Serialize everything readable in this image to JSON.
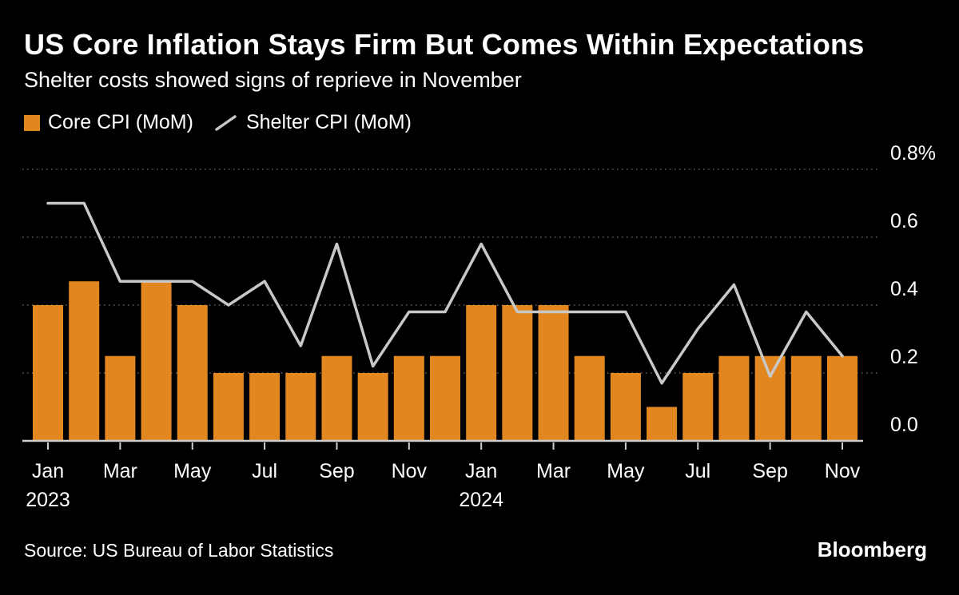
{
  "header": {
    "title": "US Core Inflation Stays Firm But Comes Within Expectations",
    "subtitle": "Shelter costs showed signs of reprieve in November"
  },
  "legend": {
    "core": "Core CPI (MoM)",
    "shelter": "Shelter CPI (MoM)"
  },
  "footer": {
    "source": "Source: US Bureau of Labor Statistics",
    "brand": "Bloomberg"
  },
  "colors": {
    "background": "#000000",
    "text": "#FFFFFF",
    "bar": "#E2861F",
    "line": "#C8C8C8",
    "grid": "#646464",
    "axis": "#CFCFCF"
  },
  "chart_data": {
    "type": "bar",
    "title": "US Core Inflation Stays Firm But Comes Within Expectations",
    "subtitle": "Shelter costs showed signs of reprieve in November",
    "xlabel": "",
    "ylabel": "",
    "ylim": [
      0,
      0.8
    ],
    "grid": "horizontal-dotted",
    "legend_position": "top-left",
    "categories": [
      "Jan 2023",
      "Feb 2023",
      "Mar 2023",
      "Apr 2023",
      "May 2023",
      "Jun 2023",
      "Jul 2023",
      "Aug 2023",
      "Sep 2023",
      "Oct 2023",
      "Nov 2023",
      "Dec 2023",
      "Jan 2024",
      "Feb 2024",
      "Mar 2024",
      "Apr 2024",
      "May 2024",
      "Jun 2024",
      "Jul 2024",
      "Aug 2024",
      "Sep 2024",
      "Oct 2024",
      "Nov 2024"
    ],
    "series": [
      {
        "name": "Core CPI (MoM)",
        "type": "bar",
        "unit": "%",
        "values": [
          0.4,
          0.47,
          0.25,
          0.47,
          0.4,
          0.2,
          0.2,
          0.2,
          0.25,
          0.2,
          0.25,
          0.25,
          0.4,
          0.4,
          0.4,
          0.25,
          0.2,
          0.1,
          0.2,
          0.25,
          0.25,
          0.25,
          0.25
        ]
      },
      {
        "name": "Shelter CPI (MoM)",
        "type": "line",
        "unit": "%",
        "values": [
          0.7,
          0.7,
          0.47,
          0.47,
          0.47,
          0.4,
          0.47,
          0.28,
          0.58,
          0.22,
          0.38,
          0.38,
          0.58,
          0.38,
          0.38,
          0.38,
          0.38,
          0.17,
          0.33,
          0.46,
          0.19,
          0.38,
          0.25
        ]
      }
    ],
    "yticks": [
      {
        "value": 0.0,
        "label": "0.0"
      },
      {
        "value": 0.2,
        "label": "0.2"
      },
      {
        "value": 0.4,
        "label": "0.4"
      },
      {
        "value": 0.6,
        "label": "0.6"
      },
      {
        "value": 0.8,
        "label": "0.8%"
      }
    ],
    "xticks": [
      {
        "index": 0,
        "label": "Jan",
        "year": "2023"
      },
      {
        "index": 2,
        "label": "Mar"
      },
      {
        "index": 4,
        "label": "May"
      },
      {
        "index": 6,
        "label": "Jul"
      },
      {
        "index": 8,
        "label": "Sep"
      },
      {
        "index": 10,
        "label": "Nov"
      },
      {
        "index": 12,
        "label": "Jan",
        "year": "2024"
      },
      {
        "index": 14,
        "label": "Mar"
      },
      {
        "index": 16,
        "label": "May"
      },
      {
        "index": 18,
        "label": "Jul"
      },
      {
        "index": 20,
        "label": "Sep"
      },
      {
        "index": 22,
        "label": "Nov"
      }
    ]
  }
}
